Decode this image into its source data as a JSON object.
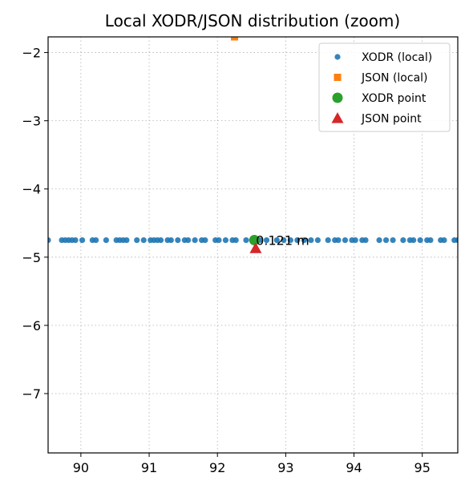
{
  "chart_data": {
    "type": "scatter",
    "title": "Local XODR/JSON distribution (zoom)",
    "xlabel": "",
    "ylabel": "",
    "xlim": [
      89.52,
      95.52
    ],
    "ylim": [
      -7.87,
      -1.77
    ],
    "xticks": [
      90,
      91,
      92,
      93,
      94,
      95
    ],
    "yticks": [
      -2,
      -3,
      -4,
      -5,
      -6,
      -7
    ],
    "grid": true,
    "legend_position": "top-right",
    "series": [
      {
        "name": "XODR (local)",
        "marker": "circle",
        "color": "#1f77b4",
        "x": [
          89.52,
          89.72,
          89.77,
          89.82,
          89.87,
          89.92,
          90.02,
          90.17,
          90.22,
          90.37,
          90.52,
          90.57,
          90.62,
          90.67,
          90.82,
          90.92,
          91.02,
          91.07,
          91.12,
          91.17,
          91.27,
          91.32,
          91.42,
          91.52,
          91.57,
          91.67,
          91.77,
          91.82,
          91.97,
          92.02,
          92.12,
          92.22,
          92.27,
          92.42,
          92.52,
          92.62,
          92.72,
          92.87,
          92.97,
          93.07,
          93.17,
          93.27,
          93.37,
          93.47,
          93.62,
          93.72,
          93.77,
          93.87,
          93.97,
          94.02,
          94.12,
          94.17,
          94.37,
          94.47,
          94.57,
          94.72,
          94.82,
          94.87,
          94.97,
          95.07,
          95.12,
          95.27,
          95.32,
          95.47,
          95.52
        ],
        "y": [
          -4.75,
          -4.75,
          -4.75,
          -4.75,
          -4.75,
          -4.75,
          -4.75,
          -4.75,
          -4.75,
          -4.75,
          -4.75,
          -4.75,
          -4.75,
          -4.75,
          -4.75,
          -4.75,
          -4.75,
          -4.75,
          -4.75,
          -4.75,
          -4.75,
          -4.75,
          -4.75,
          -4.75,
          -4.75,
          -4.75,
          -4.75,
          -4.75,
          -4.75,
          -4.75,
          -4.75,
          -4.75,
          -4.75,
          -4.75,
          -4.75,
          -4.75,
          -4.75,
          -4.75,
          -4.75,
          -4.75,
          -4.75,
          -4.75,
          -4.75,
          -4.75,
          -4.75,
          -4.75,
          -4.75,
          -4.75,
          -4.75,
          -4.75,
          -4.75,
          -4.75,
          -4.75,
          -4.75,
          -4.75,
          -4.75,
          -4.75,
          -4.75,
          -4.75,
          -4.75,
          -4.75,
          -4.75,
          -4.75,
          -4.75,
          -4.75
        ]
      },
      {
        "name": "JSON (local)",
        "marker": "square",
        "color": "#ff7f0e",
        "x": [
          92.25
        ],
        "y": [
          -1.77
        ]
      },
      {
        "name": "XODR point",
        "marker": "big-circle",
        "color": "#2ca02c",
        "x": [
          92.54
        ],
        "y": [
          -4.75
        ]
      },
      {
        "name": "JSON point",
        "marker": "triangle",
        "color": "#d62728",
        "x": [
          92.56
        ],
        "y": [
          -4.87
        ]
      }
    ],
    "annotations": [
      {
        "text": "0.121 m",
        "x": 92.54,
        "y": -4.75
      }
    ]
  }
}
